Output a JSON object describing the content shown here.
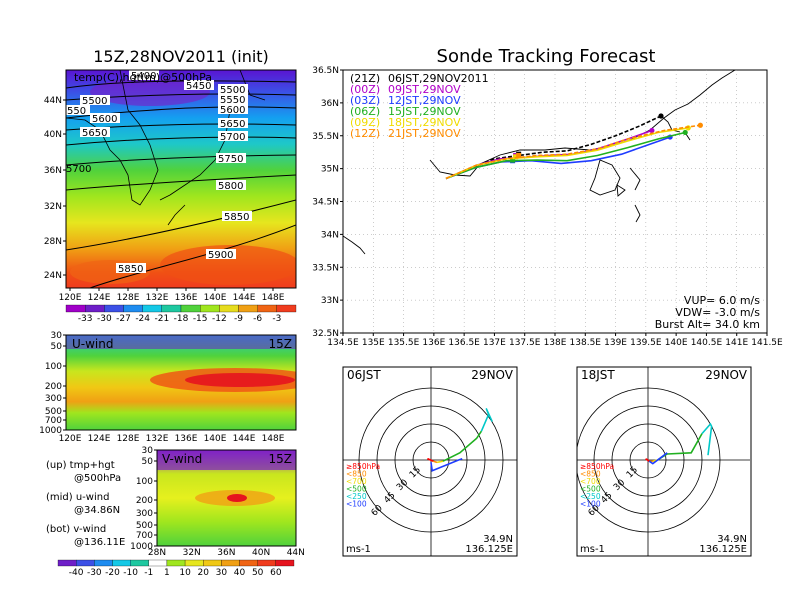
{
  "left": {
    "title": "15Z,28NOV2011 (init)",
    "map_label": "temp(C),hgt(m)@500hPa",
    "lon_ticks": [
      "120E",
      "124E",
      "128E",
      "132E",
      "136E",
      "140E",
      "144E",
      "148E"
    ],
    "lat_ticks": [
      "44N",
      "40N",
      "36N",
      "32N",
      "28N",
      "24N"
    ],
    "contours": [
      {
        "label": "5400"
      },
      {
        "label": "5450"
      },
      {
        "label": "5500"
      },
      {
        "label": "5500"
      },
      {
        "label": "5550"
      },
      {
        "label": "5600"
      },
      {
        "label": "5600"
      },
      {
        "label": "5650"
      },
      {
        "label": "5650"
      },
      {
        "label": "5700"
      },
      {
        "label": "5700"
      },
      {
        "label": "5750"
      },
      {
        "label": "5800"
      },
      {
        "label": "5850"
      },
      {
        "label": "5850"
      },
      {
        "label": "5900"
      },
      {
        "label": "550"
      }
    ],
    "temp_scale": [
      "-33",
      "-30",
      "-27",
      "-24",
      "-21",
      "-18",
      "-15",
      "-12",
      "-9",
      "-6",
      "-3"
    ],
    "uwind": {
      "title": "U-wind",
      "time": "15Z",
      "levels": [
        "30",
        "50",
        "100",
        "200",
        "300",
        "500",
        "700",
        "1000"
      ],
      "lon_ticks": [
        "120E",
        "124E",
        "128E",
        "132E",
        "136E",
        "140E",
        "144E",
        "148E"
      ]
    },
    "vwind": {
      "title": "V-wind",
      "time": "15Z",
      "levels": [
        "30",
        "50",
        "100",
        "200",
        "300",
        "500",
        "700",
        "1000"
      ],
      "lat_ticks": [
        "28N",
        "32N",
        "36N",
        "40N",
        "44N"
      ]
    },
    "wind_scale": [
      "-40",
      "-30",
      "-20",
      "-10",
      "-1",
      "1",
      "10",
      "20",
      "30",
      "40",
      "50",
      "60"
    ],
    "notes": [
      {
        "line1": "(up)  tmp+hgt",
        "line2": "@500hPa"
      },
      {
        "line1": "(mid)  u-wind",
        "line2": "@34.86N"
      },
      {
        "line1": "(bot)  v-wind",
        "line2": "@136.11E"
      }
    ]
  },
  "right": {
    "title": "Sonde Tracking Forecast",
    "lat_ticks": [
      "36.5N",
      "36N",
      "35.5N",
      "35N",
      "34.5N",
      "34N",
      "33.5N",
      "33N",
      "32.5N"
    ],
    "lon_ticks": [
      "134.5E",
      "135E",
      "135.5E",
      "136E",
      "136.5E",
      "137E",
      "137.5E",
      "138E",
      "138.5E",
      "139E",
      "139.5E",
      "140E",
      "140.5E",
      "141E",
      "141.5E"
    ],
    "legend": [
      {
        "code": "(21Z)",
        "when": "06JST,29NOV2011",
        "color": "#000000"
      },
      {
        "code": "(00Z)",
        "when": "09JST,29NOV",
        "color": "#b000c8"
      },
      {
        "code": "(03Z)",
        "when": "12JST,29NOV",
        "color": "#1e3cff"
      },
      {
        "code": "(06Z)",
        "when": "15JST,29NOV",
        "color": "#20b020"
      },
      {
        "code": "(09Z)",
        "when": "18JST,29NOV",
        "color": "#f0dc00"
      },
      {
        "code": "(12Z)",
        "when": "21JST,29NOV",
        "color": "#ff8c00"
      }
    ],
    "params": {
      "vup": "VUP=  6.0  m/s",
      "vdw": "VDW= -3.0  m/s",
      "burst": "Burst Alt= 34.0  km"
    },
    "hodographs": [
      {
        "time": "06JST",
        "date": "29NOV",
        "unit": "ms-1",
        "lat": "34.9N",
        "lon": "136.125E"
      },
      {
        "time": "18JST",
        "date": "29NOV",
        "unit": "ms-1",
        "lat": "34.9N",
        "lon": "136.125E"
      }
    ],
    "ring_labels": [
      "15",
      "30",
      "45",
      "60"
    ],
    "level_legend": [
      {
        "label": "≥850hPa",
        "color": "#ff0000"
      },
      {
        "label": "<850",
        "color": "#ff8c00"
      },
      {
        "label": "<700",
        "color": "#f0dc00"
      },
      {
        "label": "<500",
        "color": "#20b020"
      },
      {
        "label": "<250",
        "color": "#00c8c8"
      },
      {
        "label": "<100",
        "color": "#1e3cff"
      }
    ]
  },
  "chart_data": [
    {
      "type": "heatmap",
      "title": "15Z,28NOV2011 (init)",
      "subtitle": "temp(C),hgt(m)@500hPa",
      "x": [
        "120E",
        "124E",
        "128E",
        "132E",
        "136E",
        "140E",
        "144E",
        "148E"
      ],
      "y": [
        "24N",
        "28N",
        "32N",
        "36N",
        "40N",
        "44N"
      ],
      "colorbar": [
        -33,
        -30,
        -27,
        -24,
        -21,
        -18,
        -15,
        -12,
        -9,
        -6,
        -3
      ],
      "contour_levels_m": [
        5400,
        5450,
        5500,
        5550,
        5600,
        5650,
        5700,
        5750,
        5800,
        5850,
        5900
      ]
    },
    {
      "type": "heatmap",
      "title": "U-wind",
      "subtitle": "15Z",
      "x": [
        "120E",
        "124E",
        "128E",
        "132E",
        "136E",
        "140E",
        "144E",
        "148E"
      ],
      "y_levels_hPa": [
        1000,
        700,
        500,
        300,
        200,
        100,
        50,
        30
      ],
      "colorbar": [
        -40,
        -30,
        -20,
        -10,
        -1,
        1,
        10,
        20,
        30,
        40,
        50,
        60
      ]
    },
    {
      "type": "heatmap",
      "title": "V-wind",
      "subtitle": "15Z",
      "x": [
        "28N",
        "32N",
        "36N",
        "40N",
        "44N"
      ],
      "y_levels_hPa": [
        1000,
        700,
        500,
        300,
        200,
        100,
        50,
        30
      ],
      "colorbar": [
        -40,
        -30,
        -20,
        -10,
        -1,
        1,
        10,
        20,
        30,
        40,
        50,
        60
      ]
    },
    {
      "type": "line",
      "title": "Sonde Tracking Forecast",
      "xlim": [
        134.5,
        141.5
      ],
      "ylim": [
        32.5,
        36.5
      ],
      "series": [
        {
          "name": "(21Z) 06JST,29NOV2011",
          "color": "#000000",
          "dash": true,
          "x": [
            136.2,
            136.6,
            137.0,
            137.4,
            137.8,
            138.2,
            138.6,
            139.0,
            139.4,
            139.75
          ],
          "y": [
            34.85,
            35.0,
            35.15,
            35.2,
            35.25,
            35.27,
            35.37,
            35.5,
            35.65,
            35.8
          ],
          "launch": [
            137.4,
            35.22
          ],
          "burst": [
            139.75,
            35.8
          ]
        },
        {
          "name": "(00Z) 09JST,29NOV",
          "color": "#b000c8",
          "dash": false,
          "x": [
            136.2,
            136.7,
            137.1,
            137.5,
            137.9,
            138.3,
            138.7,
            139.2,
            139.6
          ],
          "y": [
            34.85,
            35.05,
            35.15,
            35.17,
            35.2,
            35.22,
            35.3,
            35.45,
            35.58
          ],
          "launch": [
            137.35,
            35.2
          ],
          "burst": [
            139.6,
            35.58
          ]
        },
        {
          "name": "(03Z) 12JST,29NOV",
          "color": "#1e3cff",
          "dash": false,
          "x": [
            136.2,
            136.7,
            137.1,
            137.6,
            138.1,
            138.6,
            139.1,
            139.5,
            139.9
          ],
          "y": [
            34.85,
            35.02,
            35.1,
            35.12,
            35.08,
            35.12,
            35.22,
            35.35,
            35.48
          ],
          "launch": [
            137.3,
            35.12
          ],
          "burst": [
            139.9,
            35.48
          ]
        },
        {
          "name": "(06Z) 15JST,29NOV",
          "color": "#20b020",
          "dash": false,
          "x": [
            136.2,
            136.7,
            137.2,
            137.7,
            138.2,
            138.7,
            139.2,
            139.7,
            140.15
          ],
          "y": [
            34.85,
            35.02,
            35.12,
            35.13,
            35.12,
            35.2,
            35.32,
            35.45,
            35.55
          ],
          "launch": [
            137.3,
            35.13
          ],
          "burst": [
            140.15,
            35.55
          ]
        },
        {
          "name": "(09Z) 18JST,29NOV",
          "color": "#f0dc00",
          "dash": false,
          "x": [
            136.2,
            136.7,
            137.2,
            137.7,
            138.2,
            138.7,
            139.2,
            139.7,
            140.2
          ],
          "y": [
            34.85,
            35.05,
            35.15,
            35.18,
            35.2,
            35.28,
            35.42,
            35.55,
            35.62
          ],
          "launch": [
            137.35,
            35.18
          ],
          "burst": [
            140.2,
            35.62
          ]
        },
        {
          "name": "(12Z) 21JST,29NOV",
          "color": "#ff8c00",
          "dash": true,
          "x": [
            136.2,
            136.7,
            137.2,
            137.7,
            138.2,
            138.7,
            139.2,
            139.8,
            140.4
          ],
          "y": [
            34.85,
            35.05,
            35.15,
            35.2,
            35.22,
            35.3,
            35.45,
            35.58,
            35.66
          ],
          "launch": [
            137.4,
            35.2
          ],
          "burst": [
            140.4,
            35.66
          ]
        }
      ]
    },
    {
      "type": "line",
      "title": "06JST 29NOV hodograph",
      "rings_ms": [
        15,
        30,
        45,
        60
      ],
      "segments": [
        {
          "level": "≥850hPa",
          "color": "#ff0000",
          "u": [
            0,
            -3,
            2
          ],
          "v": [
            0,
            1,
            -1
          ]
        },
        {
          "level": "<850",
          "color": "#ff8c00",
          "u": [
            2,
            5
          ],
          "v": [
            -1,
            -2
          ]
        },
        {
          "level": "<700",
          "color": "#f0dc00",
          "u": [
            5,
            10
          ],
          "v": [
            -2,
            -1
          ]
        },
        {
          "level": "<500",
          "color": "#20b020",
          "u": [
            10,
            24,
            38,
            42
          ],
          "v": [
            -1,
            6,
            18,
            24
          ]
        },
        {
          "level": "<250",
          "color": "#00c8c8",
          "u": [
            42,
            48,
            46,
            51
          ],
          "v": [
            24,
            38,
            43,
            32
          ]
        },
        {
          "level": "<100",
          "color": "#1e3cff",
          "u": [
            0,
            1,
            23,
            26
          ],
          "v": [
            -2,
            -9,
            0,
            1
          ]
        }
      ]
    },
    {
      "type": "line",
      "title": "18JST 29NOV hodograph",
      "rings_ms": [
        15,
        30,
        45,
        60
      ],
      "segments": [
        {
          "level": "≥850hPa",
          "color": "#ff0000",
          "u": [
            0,
            -2,
            1
          ],
          "v": [
            0,
            1,
            -1
          ]
        },
        {
          "level": "<850",
          "color": "#ff8c00",
          "u": [
            1,
            4
          ],
          "v": [
            -1,
            -1
          ]
        },
        {
          "level": "<700",
          "color": "#f0dc00",
          "u": [
            4,
            8
          ],
          "v": [
            -1,
            0
          ]
        },
        {
          "level": "<500",
          "color": "#20b020",
          "u": [
            8,
            16,
            36,
            45
          ],
          "v": [
            0,
            5,
            6,
            22
          ]
        },
        {
          "level": "<250",
          "color": "#00c8c8",
          "u": [
            45,
            52,
            53,
            50
          ],
          "v": [
            22,
            30,
            28,
            4
          ]
        },
        {
          "level": "<100",
          "color": "#1e3cff",
          "u": [
            1,
            4,
            16
          ],
          "v": [
            -1,
            -3,
            6
          ]
        }
      ]
    }
  ]
}
